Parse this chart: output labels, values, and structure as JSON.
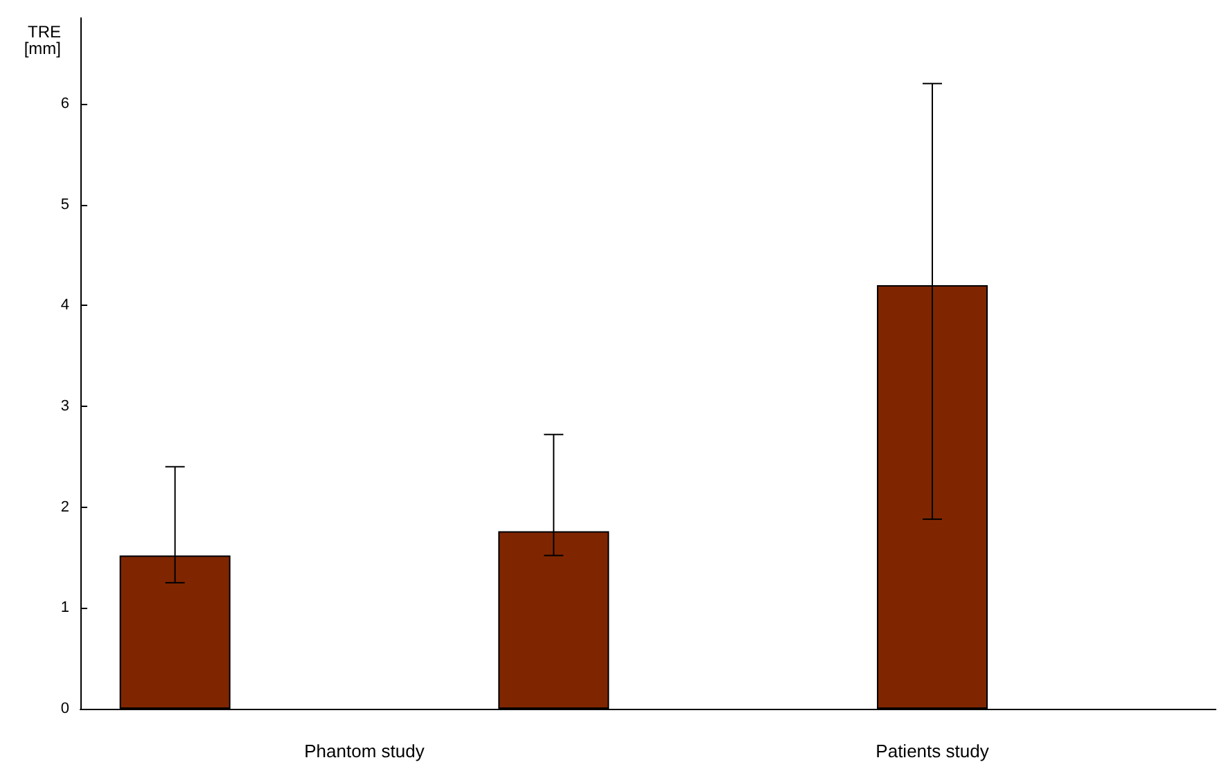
{
  "chart_data": {
    "type": "bar",
    "ylabel": "TRE\n[mm]",
    "categories": [
      null,
      "Phantom study",
      null,
      null,
      "Patients study",
      null
    ],
    "values": [
      1.52,
      null,
      1.76,
      null,
      4.2,
      null
    ],
    "errors": [
      [
        1.25,
        2.4
      ],
      null,
      [
        1.52,
        2.72
      ],
      null,
      [
        1.88,
        6.2
      ],
      null
    ],
    "color": "#7f2600",
    "ylim": [
      0,
      6.85
    ],
    "yticks": [
      0,
      1,
      2,
      3,
      4,
      5,
      6
    ]
  }
}
